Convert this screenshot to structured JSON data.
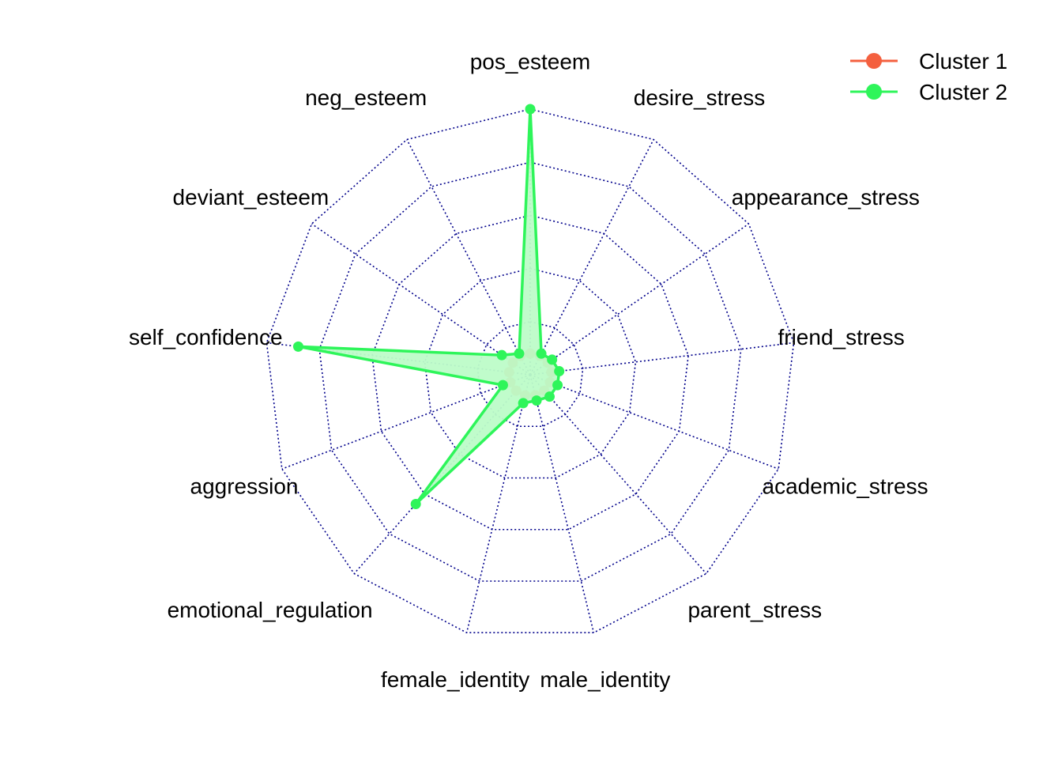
{
  "chart_data": {
    "type": "radar",
    "title": "",
    "axes": [
      "pos_esteem",
      "desire_stress",
      "appearance_stress",
      "friend_stress",
      "academic_stress",
      "parent_stress",
      "male_identity",
      "female_identity",
      "emotional_regulation",
      "aggression",
      "self_confidence",
      "deviant_esteem",
      "neg_esteem"
    ],
    "rmax": 1.0,
    "grid_levels": 5,
    "grid": true,
    "legend_position": "top-right",
    "series": [
      {
        "name": "Cluster 1",
        "color": "#F4603F",
        "values": [
          0.08,
          0.08,
          0.08,
          0.08,
          0.08,
          0.08,
          0.08,
          0.08,
          0.08,
          0.08,
          0.08,
          0.08,
          0.08
        ]
      },
      {
        "name": "Cluster 2",
        "color": "#2EF55A",
        "fill": "#BDFCC8",
        "values": [
          1.0,
          0.09,
          0.1,
          0.11,
          0.11,
          0.11,
          0.1,
          0.11,
          0.65,
          0.11,
          0.88,
          0.13,
          0.09
        ]
      }
    ],
    "grid_color": "#00008B"
  }
}
